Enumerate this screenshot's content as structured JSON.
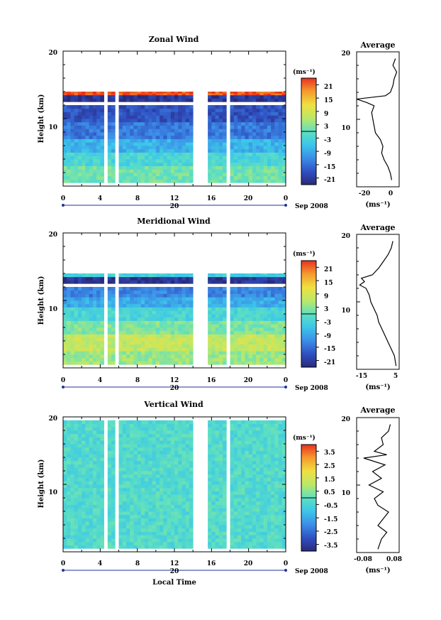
{
  "chart_data": [
    {
      "type": "heatmap",
      "title": "Zonal Wind",
      "ylabel": "Height (km)",
      "ylim": [
        0,
        20
      ],
      "y_ticks": [
        "10",
        "20"
      ],
      "x_ticks": [
        "0",
        "4",
        "8",
        "12",
        "16",
        "20",
        "0"
      ],
      "date_day": "20",
      "date_label": "Sep 2008",
      "colorbar_unit": "(ms⁻¹)",
      "colorbar_ticks": [
        "21",
        "15",
        "9",
        "3",
        "-3",
        "-9",
        "-15",
        "-21"
      ],
      "colorbar_range": [
        -24,
        24
      ],
      "gaps_hours": [
        [
          4.3,
          4.9
        ],
        [
          5.5,
          6.1
        ],
        [
          14.2,
          15.6
        ],
        [
          17.6,
          18.0
        ]
      ],
      "rows_top_km": [
        {
          "from": 0.5,
          "to": 3.0,
          "value": 1
        },
        {
          "from": 3.0,
          "to": 5.0,
          "value": -3
        },
        {
          "from": 5.0,
          "to": 7.0,
          "value": -8
        },
        {
          "from": 7.0,
          "to": 9.5,
          "value": -14
        },
        {
          "from": 9.5,
          "to": 12.0,
          "value": -18
        },
        {
          "from": 12.5,
          "to": 13.5,
          "value": -22
        },
        {
          "from": 13.5,
          "to": 14.0,
          "value": 22
        }
      ],
      "average": {
        "title": "Average",
        "xlabel": "(ms⁻¹)",
        "x_ticks": [
          "-20",
          "0"
        ],
        "xlim": [
          -28,
          6
        ],
        "ylim": [
          0,
          20
        ],
        "y_ticks": [
          "10",
          "20"
        ],
        "profile": {
          "height": [
            1,
            2,
            3,
            4,
            5,
            6,
            7,
            8,
            9,
            10,
            11,
            12,
            12.5,
            13,
            13.5,
            14,
            15,
            16,
            17,
            18,
            19
          ],
          "value": [
            0,
            -1,
            -3,
            -6,
            -8,
            -7,
            -9,
            -13,
            -14,
            -15,
            -16,
            -14,
            -20,
            -28,
            -5,
            -1,
            1,
            2,
            4,
            1,
            3
          ]
        }
      }
    },
    {
      "type": "heatmap",
      "title": "Meridional Wind",
      "ylabel": "Height (km)",
      "ylim": [
        0,
        20
      ],
      "y_ticks": [
        "10",
        "20"
      ],
      "x_ticks": [
        "0",
        "4",
        "8",
        "12",
        "16",
        "20",
        "0"
      ],
      "date_day": "20",
      "date_label": "Sep 2008",
      "colorbar_unit": "(ms⁻¹)",
      "colorbar_ticks": [
        "21",
        "15",
        "9",
        "3",
        "-3",
        "-9",
        "-15",
        "-21"
      ],
      "colorbar_range": [
        -24,
        24
      ],
      "gaps_hours": [
        [
          4.3,
          4.9
        ],
        [
          5.5,
          6.1
        ],
        [
          14.2,
          15.6
        ],
        [
          17.6,
          18.0
        ]
      ],
      "rows_top_km": [
        {
          "from": 0.5,
          "to": 2.5,
          "value": 4
        },
        {
          "from": 2.5,
          "to": 5.0,
          "value": 7
        },
        {
          "from": 5.0,
          "to": 7.0,
          "value": 2
        },
        {
          "from": 7.0,
          "to": 9.0,
          "value": -3
        },
        {
          "from": 9.0,
          "to": 10.5,
          "value": -9
        },
        {
          "from": 10.5,
          "to": 12.0,
          "value": -13
        },
        {
          "from": 12.5,
          "to": 13.5,
          "value": -22
        },
        {
          "from": 13.5,
          "to": 14.0,
          "value": -4
        }
      ],
      "average": {
        "title": "Average",
        "xlabel": "(ms⁻¹)",
        "x_ticks": [
          "-15",
          "5"
        ],
        "xlim": [
          -20,
          7
        ],
        "ylim": [
          0,
          20
        ],
        "y_ticks": [
          "10",
          "20"
        ],
        "profile": {
          "height": [
            0.5,
            2,
            3,
            4,
            5,
            6,
            7,
            8,
            9,
            10,
            11,
            12,
            12.5,
            13,
            13.5,
            14,
            15,
            16,
            17,
            18,
            19
          ],
          "value": [
            5,
            4,
            2,
            0,
            -2,
            -4,
            -6,
            -7,
            -9,
            -11,
            -12,
            -14,
            -18,
            -15,
            -17,
            -10,
            -6,
            -3,
            0,
            2,
            3
          ]
        }
      }
    },
    {
      "type": "heatmap",
      "title": "Vertical Wind",
      "xlabel": "Local Time",
      "ylabel": "Height (km)",
      "ylim": [
        0,
        20
      ],
      "y_ticks": [
        "10",
        "20"
      ],
      "x_ticks": [
        "0",
        "4",
        "8",
        "12",
        "16",
        "20",
        "0"
      ],
      "date_day": "20",
      "date_label": "Sep 2008",
      "colorbar_unit": "(ms⁻¹)",
      "colorbar_ticks": [
        "3.5",
        "2.5",
        "1.5",
        "0.5",
        "-0.5",
        "-1.5",
        "-2.5",
        "-3.5"
      ],
      "colorbar_range": [
        -4,
        4
      ],
      "gaps_hours": [
        [
          4.3,
          4.9
        ],
        [
          5.5,
          6.1
        ],
        [
          14.2,
          15.6
        ],
        [
          17.6,
          18.0
        ]
      ],
      "rows_top_km": [
        {
          "from": 0.5,
          "to": 19.5,
          "value": -0.3
        }
      ],
      "average": {
        "title": "Average",
        "xlabel": "(ms⁻¹)",
        "x_ticks": [
          "-0.08",
          "0.08"
        ],
        "xlim": [
          -0.12,
          0.12
        ],
        "ylim": [
          0,
          20
        ],
        "y_ticks": [
          "10",
          "20"
        ],
        "profile": {
          "height": [
            0.5,
            2,
            3,
            4,
            5,
            6,
            7,
            8,
            9,
            10,
            11,
            12,
            13,
            14,
            14.5,
            15,
            16,
            17,
            18,
            19
          ],
          "value": [
            0.0,
            0.02,
            0.05,
            0.0,
            0.03,
            0.06,
            0.0,
            -0.02,
            0.03,
            -0.05,
            0.02,
            -0.03,
            0.04,
            -0.08,
            0.05,
            -0.02,
            0.03,
            0.02,
            0.06,
            0.07
          ]
        }
      }
    }
  ]
}
